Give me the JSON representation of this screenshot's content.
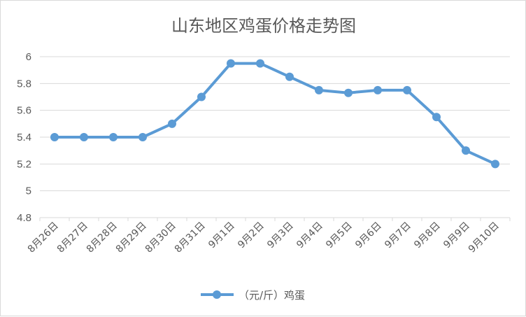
{
  "chart_data": {
    "type": "line",
    "title": "山东地区鸡蛋价格走势图",
    "xlabel": "",
    "ylabel": "",
    "categories": [
      "8月26日",
      "8月27日",
      "8月28日",
      "8月29日",
      "8月30日",
      "8月31日",
      "9月1日",
      "9月2日",
      "9月3日",
      "9月4日",
      "9月5日",
      "9月6日",
      "9月7日",
      "9月8日",
      "9月9日",
      "9月10日"
    ],
    "series": [
      {
        "name": "（元/斤）鸡蛋",
        "values": [
          5.4,
          5.4,
          5.4,
          5.4,
          5.5,
          5.7,
          5.95,
          5.95,
          5.85,
          5.75,
          5.73,
          5.75,
          5.75,
          5.55,
          5.3,
          5.2
        ]
      }
    ],
    "ylim": [
      4.8,
      6
    ],
    "yticks": [
      "4.8",
      "5",
      "5.2",
      "5.4",
      "5.6",
      "5.8",
      "6"
    ],
    "grid": true,
    "legend": "bottom",
    "colors": {
      "series": "#5b9bd5"
    }
  }
}
